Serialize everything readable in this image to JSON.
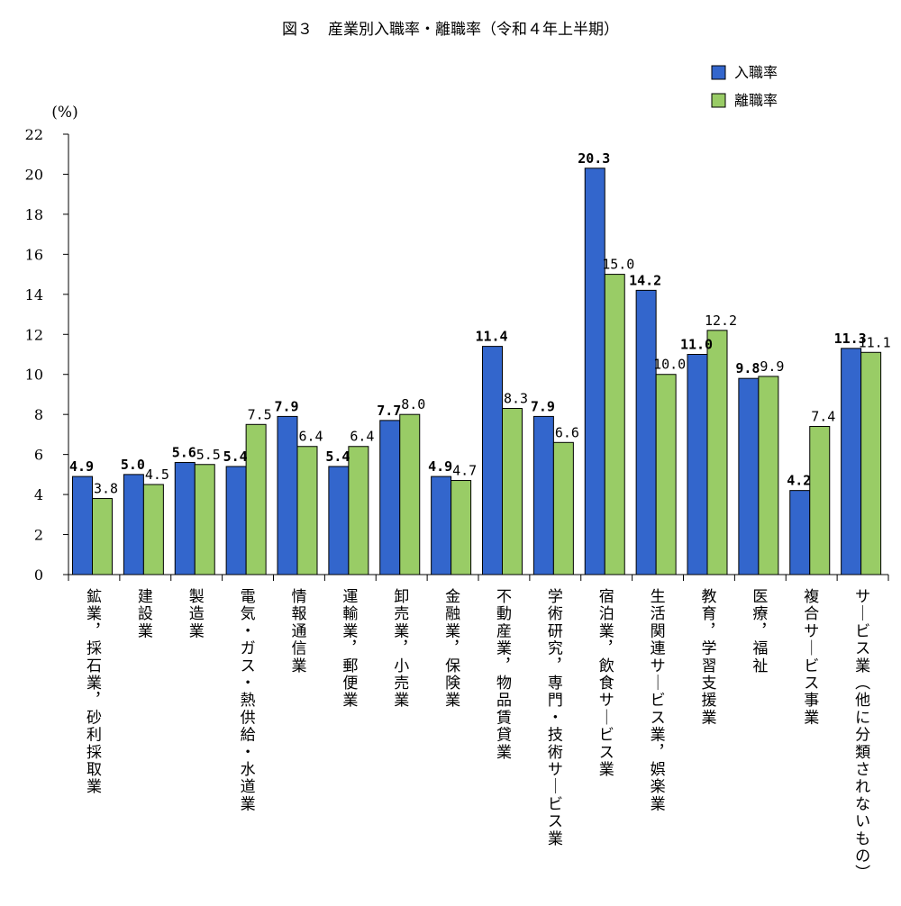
{
  "chart_data": {
    "type": "bar",
    "title": "図３　産業別入職率・離職率（令和４年上半期）",
    "ylabel": "(%)",
    "ylim": [
      0,
      22
    ],
    "yticks": [
      0,
      2,
      4,
      6,
      8,
      10,
      12,
      14,
      16,
      18,
      20,
      22
    ],
    "legend_position": "top-right",
    "grid": false,
    "categories": [
      "鉱業，採石業，砂利採取業",
      "建設業",
      "製造業",
      "電気・ガス・熱供給・水道業",
      "情報通信業",
      "運輸業，郵便業",
      "卸売業，小売業",
      "金融業，保険業",
      "不動産業，物品賃貸業",
      "学術研究，専門・技術サービス業",
      "宿泊業，飲食サービス業",
      "生活関連サービス業，娯楽業",
      "教育，学習支援業",
      "医療，福祉",
      "複合サービス事業",
      "サービス業（他に分類されないもの）"
    ],
    "series": [
      {
        "name": "入職率",
        "color": "#3366cc",
        "values": [
          4.9,
          5.0,
          5.6,
          5.4,
          7.9,
          5.4,
          7.7,
          4.9,
          11.4,
          7.9,
          20.3,
          14.2,
          11.0,
          9.8,
          4.2,
          11.3
        ],
        "labels": [
          "4.9",
          "5.0",
          "5.6",
          "5.4",
          "7.9",
          "5.4",
          "7.7",
          "4.9",
          "11.4",
          "7.9",
          "20.3",
          "14.2",
          "11.0",
          "9.8",
          "4.2",
          "11.3"
        ]
      },
      {
        "name": "離職率",
        "color": "#99cc66",
        "values": [
          3.8,
          4.5,
          5.5,
          7.5,
          6.4,
          6.4,
          8.0,
          4.7,
          8.3,
          6.6,
          15.0,
          10.0,
          12.2,
          9.9,
          7.4,
          11.1
        ],
        "labels": [
          "3.8",
          "4.5",
          "5.5",
          "7.5",
          "6.4",
          "6.4",
          "8.0",
          "4.7",
          "8.3",
          "6.6",
          "15.0",
          "10.0",
          "12.2",
          "9.9",
          "7.4",
          "11.1"
        ]
      }
    ]
  }
}
